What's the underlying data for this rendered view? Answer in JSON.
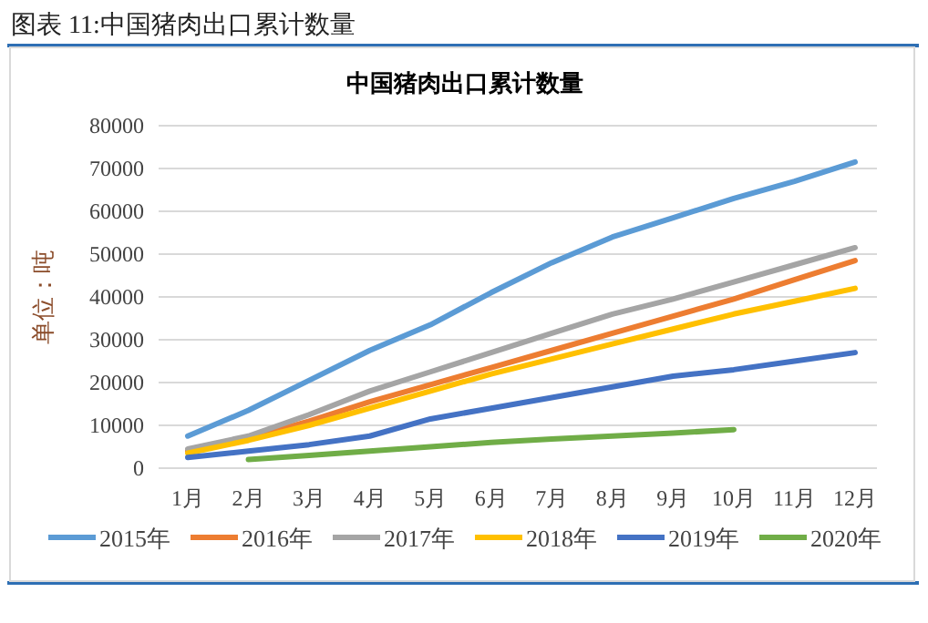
{
  "chart_data": {
    "type": "line",
    "title": "中国猪肉出口累计数量",
    "ylabel": "单位：吨",
    "annotations": [
      "图表 11:中国猪肉出口累计数量"
    ],
    "categories": [
      "1月",
      "2月",
      "3月",
      "4月",
      "5月",
      "6月",
      "7月",
      "8月",
      "9月",
      "10月",
      "11月",
      "12月"
    ],
    "series": [
      {
        "name": "2015年",
        "color": "#5b9bd5",
        "values": [
          7500,
          13500,
          20500,
          27500,
          33500,
          41000,
          48000,
          54000,
          58500,
          63000,
          67000,
          71500
        ]
      },
      {
        "name": "2016年",
        "color": "#ed7d31",
        "values": [
          4000,
          7000,
          11000,
          15500,
          19500,
          23500,
          27500,
          31500,
          35500,
          39500,
          44000,
          48500
        ]
      },
      {
        "name": "2017年",
        "color": "#a5a5a5",
        "values": [
          4500,
          7500,
          12500,
          18000,
          22500,
          27000,
          31500,
          36000,
          39500,
          43500,
          47500,
          51500
        ]
      },
      {
        "name": "2018年",
        "color": "#ffc000",
        "values": [
          3500,
          6500,
          10000,
          14000,
          18000,
          22000,
          25500,
          29000,
          32500,
          36000,
          39000,
          42000
        ]
      },
      {
        "name": "2019年",
        "color": "#4472c4",
        "values": [
          2500,
          4000,
          5500,
          7500,
          11500,
          14000,
          16500,
          19000,
          21500,
          23000,
          25000,
          27000
        ]
      },
      {
        "name": "2020年",
        "color": "#70ad47",
        "values": [
          null,
          2000,
          3000,
          4000,
          5000,
          6000,
          6800,
          7500,
          8200,
          9000,
          null,
          null
        ]
      }
    ],
    "ylim": [
      0,
      80000
    ],
    "yticks": [
      0,
      10000,
      20000,
      30000,
      40000,
      50000,
      60000,
      70000,
      80000
    ],
    "grid": "y",
    "legend": "bottom",
    "marker": "none",
    "line_style": "solid"
  }
}
